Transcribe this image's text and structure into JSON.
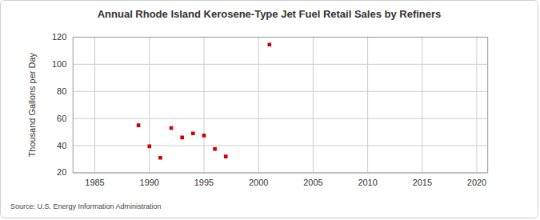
{
  "chart_data": {
    "type": "scatter",
    "title": "Annual Rhode Island Kerosene-Type Jet Fuel Retail Sales by Refiners",
    "y_label": "Thousand Gallons per Day",
    "caption": "Source: U.S. Energy Information Administration",
    "x": [
      1989,
      1990,
      1991,
      1992,
      1993,
      1994,
      1995,
      1996,
      1997,
      2001
    ],
    "values": [
      55,
      39.5,
      31,
      53,
      46,
      49,
      47.5,
      37.5,
      32,
      114.5
    ],
    "color": "#cc0000",
    "marker": "square",
    "xlim": [
      1983,
      2021
    ],
    "xticks": [
      1985,
      1990,
      1995,
      2000,
      2005,
      2010,
      2015,
      2020
    ],
    "ylim": [
      20,
      120
    ],
    "yticks": [
      20,
      40,
      60,
      80,
      100,
      120
    ],
    "grid": true
  }
}
